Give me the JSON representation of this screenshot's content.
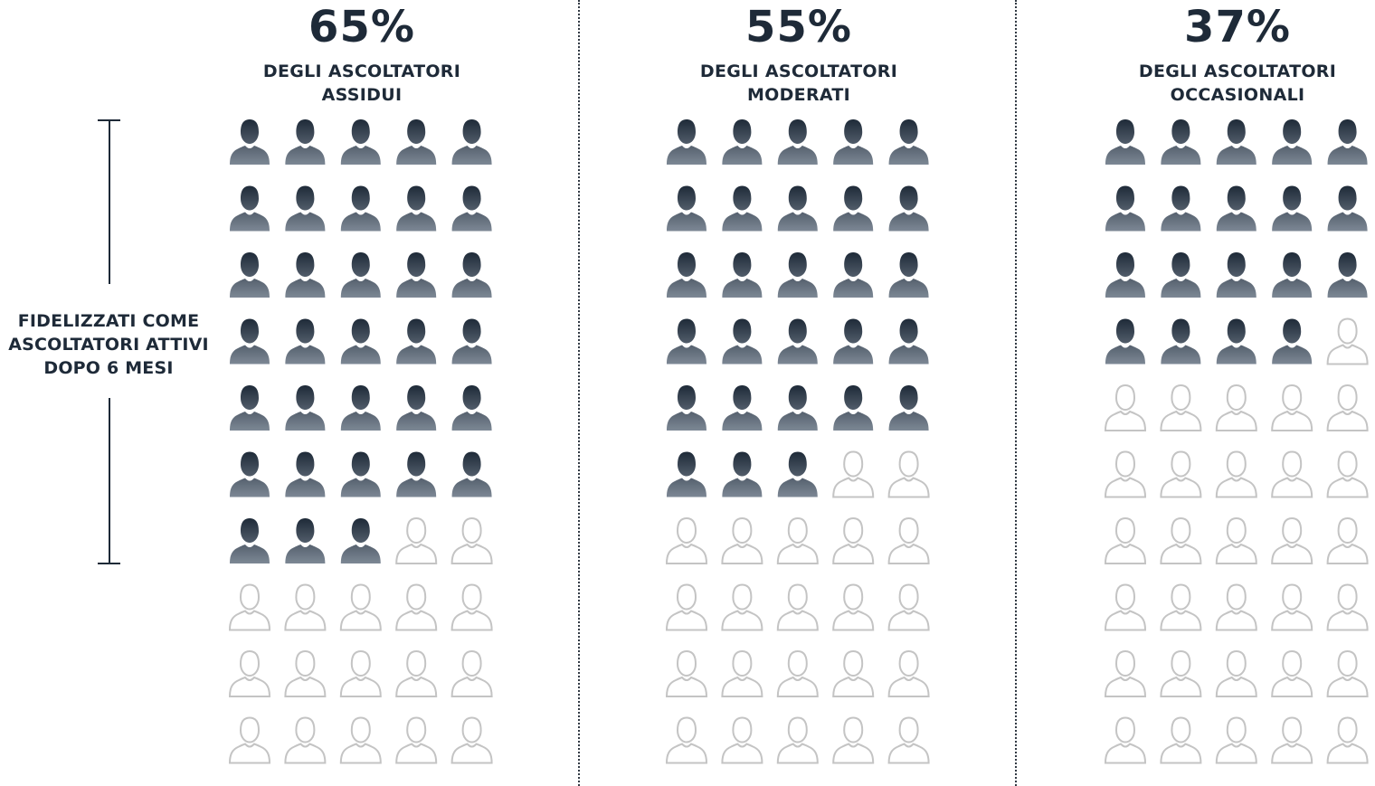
{
  "chart_data": {
    "type": "pictograph",
    "icon": "person-icon",
    "grid": {
      "rows": 10,
      "cols": 5,
      "total": 50
    },
    "side_label": "FIDELIZZATI COME ASCOLTATORI ATTIVI DOPO 6 MESI",
    "side_label_lines": [
      "FIDELIZZATI COME",
      "ASCOLTATORI ATTIVI",
      "DOPO 6 MESI"
    ],
    "series": [
      {
        "value_label": "65%",
        "value": 65,
        "filled": 33,
        "subtitle": [
          "DEGLI ASCOLTATORI",
          "ASSIDUI"
        ]
      },
      {
        "value_label": "55%",
        "value": 55,
        "filled": 28,
        "subtitle": [
          "DEGLI ASCOLTATORI",
          "MODERATI"
        ]
      },
      {
        "value_label": "37%",
        "value": 37,
        "filled": 19,
        "subtitle": [
          "DEGLI ASCOLTATORI",
          "OCCASIONALI"
        ]
      }
    ],
    "colors": {
      "filled_top": "#1e2a38",
      "filled_bottom": "#7d8895",
      "outline": "#c4c4c4",
      "text": "#1e2a38"
    }
  }
}
